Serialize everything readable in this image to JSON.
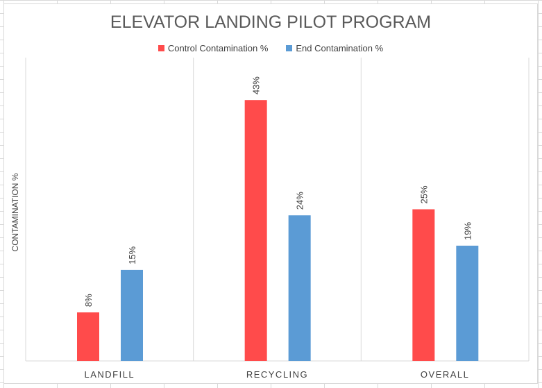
{
  "chart_data": {
    "type": "bar",
    "title": "ELEVATOR LANDING PILOT PROGRAM",
    "ylabel": "CONTAMINATION %",
    "xlabel": "",
    "categories": [
      "LANDFILL",
      "RECYCLING",
      "OVERALL"
    ],
    "series": [
      {
        "name": "Control Contamination %",
        "values": [
          8,
          43,
          25
        ],
        "labels": [
          "8%",
          "43%",
          "25%"
        ],
        "color": "#ff4b4b"
      },
      {
        "name": "End Contamination %",
        "values": [
          15,
          24,
          19
        ],
        "labels": [
          "15%",
          "24%",
          "19%"
        ],
        "color": "#5b9bd5"
      }
    ],
    "ylim": [
      0,
      50
    ],
    "grid": "vertical category separators",
    "legend": "top"
  }
}
